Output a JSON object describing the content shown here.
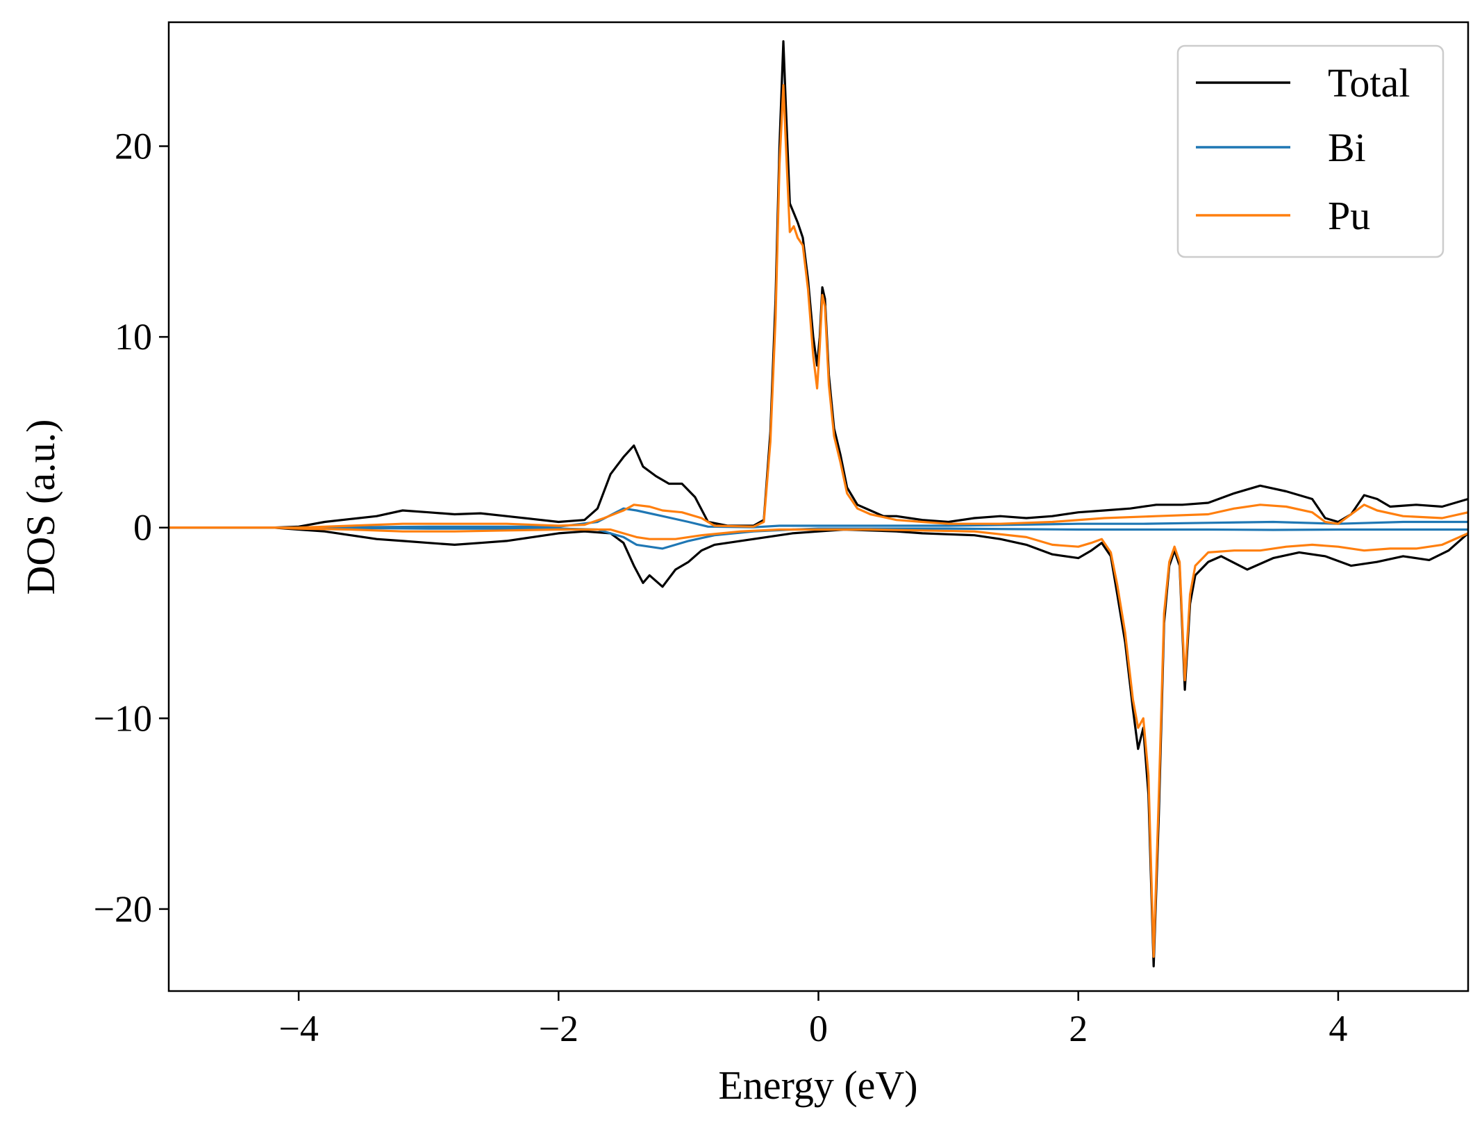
{
  "chart_data": {
    "type": "line",
    "title": "",
    "xlabel": "Energy (eV)",
    "ylabel": "DOS (a.u.)",
    "xlim": [
      -5,
      5
    ],
    "ylim": [
      -24.3,
      26.5
    ],
    "xticks": [
      -4,
      -2,
      0,
      2,
      4
    ],
    "yticks": [
      -20,
      -10,
      0,
      10,
      20
    ],
    "xtick_labels": [
      "−4",
      "−2",
      "0",
      "2",
      "4"
    ],
    "ytick_labels": [
      "−20",
      "−10",
      "0",
      "10",
      "20"
    ],
    "grid": false,
    "legend_position": "top-right",
    "series": [
      {
        "name": "Total",
        "color": "#000000",
        "up": [
          [
            -5,
            0
          ],
          [
            -4.2,
            0
          ],
          [
            -4,
            0.05
          ],
          [
            -3.8,
            0.3
          ],
          [
            -3.6,
            0.45
          ],
          [
            -3.4,
            0.6
          ],
          [
            -3.2,
            0.9
          ],
          [
            -3,
            0.8
          ],
          [
            -2.8,
            0.7
          ],
          [
            -2.6,
            0.75
          ],
          [
            -2.4,
            0.6
          ],
          [
            -2.2,
            0.45
          ],
          [
            -2,
            0.3
          ],
          [
            -1.8,
            0.4
          ],
          [
            -1.7,
            1
          ],
          [
            -1.6,
            2.8
          ],
          [
            -1.5,
            3.7
          ],
          [
            -1.42,
            4.3
          ],
          [
            -1.35,
            3.2
          ],
          [
            -1.25,
            2.7
          ],
          [
            -1.15,
            2.3
          ],
          [
            -1.05,
            2.3
          ],
          [
            -0.95,
            1.6
          ],
          [
            -0.85,
            0.3
          ],
          [
            -0.7,
            0.1
          ],
          [
            -0.5,
            0.1
          ],
          [
            -0.42,
            0.4
          ],
          [
            -0.37,
            5
          ],
          [
            -0.33,
            12
          ],
          [
            -0.3,
            20
          ],
          [
            -0.27,
            25.5
          ],
          [
            -0.25,
            22
          ],
          [
            -0.22,
            17
          ],
          [
            -0.19,
            16.5
          ],
          [
            -0.16,
            16
          ],
          [
            -0.12,
            15.2
          ],
          [
            -0.08,
            13
          ],
          [
            -0.04,
            10
          ],
          [
            -0.01,
            8.5
          ],
          [
            0.01,
            10
          ],
          [
            0.03,
            12.6
          ],
          [
            0.05,
            12
          ],
          [
            0.08,
            8
          ],
          [
            0.12,
            5.2
          ],
          [
            0.17,
            3.8
          ],
          [
            0.22,
            2.1
          ],
          [
            0.3,
            1.2
          ],
          [
            0.4,
            0.9
          ],
          [
            0.5,
            0.6
          ],
          [
            0.6,
            0.6
          ],
          [
            0.7,
            0.5
          ],
          [
            0.8,
            0.4
          ],
          [
            1,
            0.3
          ],
          [
            1.2,
            0.5
          ],
          [
            1.4,
            0.6
          ],
          [
            1.6,
            0.5
          ],
          [
            1.8,
            0.6
          ],
          [
            2,
            0.8
          ],
          [
            2.2,
            0.9
          ],
          [
            2.4,
            1
          ],
          [
            2.6,
            1.2
          ],
          [
            2.8,
            1.2
          ],
          [
            3,
            1.3
          ],
          [
            3.2,
            1.8
          ],
          [
            3.4,
            2.2
          ],
          [
            3.6,
            1.9
          ],
          [
            3.8,
            1.5
          ],
          [
            3.9,
            0.5
          ],
          [
            4,
            0.3
          ],
          [
            4.1,
            0.7
          ],
          [
            4.2,
            1.7
          ],
          [
            4.3,
            1.5
          ],
          [
            4.4,
            1.1
          ],
          [
            4.6,
            1.2
          ],
          [
            4.8,
            1.1
          ],
          [
            5,
            1.5
          ]
        ],
        "down": [
          [
            -5,
            0
          ],
          [
            -4.2,
            0
          ],
          [
            -4,
            -0.1
          ],
          [
            -3.8,
            -0.2
          ],
          [
            -3.6,
            -0.4
          ],
          [
            -3.4,
            -0.6
          ],
          [
            -3.2,
            -0.7
          ],
          [
            -3,
            -0.8
          ],
          [
            -2.8,
            -0.9
          ],
          [
            -2.6,
            -0.8
          ],
          [
            -2.4,
            -0.7
          ],
          [
            -2.2,
            -0.5
          ],
          [
            -2,
            -0.3
          ],
          [
            -1.8,
            -0.2
          ],
          [
            -1.6,
            -0.3
          ],
          [
            -1.5,
            -0.8
          ],
          [
            -1.42,
            -2
          ],
          [
            -1.35,
            -2.9
          ],
          [
            -1.3,
            -2.5
          ],
          [
            -1.2,
            -3.1
          ],
          [
            -1.1,
            -2.2
          ],
          [
            -1,
            -1.8
          ],
          [
            -0.9,
            -1.2
          ],
          [
            -0.8,
            -0.9
          ],
          [
            -0.6,
            -0.7
          ],
          [
            -0.4,
            -0.5
          ],
          [
            -0.2,
            -0.3
          ],
          [
            0,
            -0.2
          ],
          [
            0.2,
            -0.1
          ],
          [
            0.4,
            -0.15
          ],
          [
            0.6,
            -0.2
          ],
          [
            0.8,
            -0.3
          ],
          [
            1,
            -0.35
          ],
          [
            1.2,
            -0.4
          ],
          [
            1.4,
            -0.6
          ],
          [
            1.6,
            -0.9
          ],
          [
            1.8,
            -1.4
          ],
          [
            2,
            -1.6
          ],
          [
            2.1,
            -1.2
          ],
          [
            2.18,
            -0.8
          ],
          [
            2.25,
            -1.5
          ],
          [
            2.3,
            -3.5
          ],
          [
            2.36,
            -6
          ],
          [
            2.42,
            -9.5
          ],
          [
            2.46,
            -11.6
          ],
          [
            2.5,
            -10.5
          ],
          [
            2.54,
            -14
          ],
          [
            2.58,
            -23
          ],
          [
            2.62,
            -15
          ],
          [
            2.66,
            -5
          ],
          [
            2.7,
            -2
          ],
          [
            2.74,
            -1.2
          ],
          [
            2.78,
            -2
          ],
          [
            2.82,
            -8.5
          ],
          [
            2.86,
            -4
          ],
          [
            2.9,
            -2.5
          ],
          [
            3,
            -1.8
          ],
          [
            3.1,
            -1.5
          ],
          [
            3.3,
            -2.2
          ],
          [
            3.5,
            -1.6
          ],
          [
            3.7,
            -1.3
          ],
          [
            3.9,
            -1.5
          ],
          [
            4.1,
            -2
          ],
          [
            4.3,
            -1.8
          ],
          [
            4.5,
            -1.5
          ],
          [
            4.7,
            -1.7
          ],
          [
            4.85,
            -1.2
          ],
          [
            5,
            -0.3
          ]
        ]
      },
      {
        "name": "Bi",
        "color": "#1f77b4",
        "up": [
          [
            -5,
            0
          ],
          [
            -4,
            0
          ],
          [
            -3,
            0.05
          ],
          [
            -2,
            0.05
          ],
          [
            -1.7,
            0.3
          ],
          [
            -1.5,
            1
          ],
          [
            -1.4,
            0.9
          ],
          [
            -1.2,
            0.6
          ],
          [
            -1,
            0.3
          ],
          [
            -0.85,
            0.05
          ],
          [
            -0.5,
            0.02
          ],
          [
            -0.3,
            0.1
          ],
          [
            0,
            0.1
          ],
          [
            0.5,
            0.1
          ],
          [
            1,
            0.1
          ],
          [
            1.5,
            0.15
          ],
          [
            2,
            0.2
          ],
          [
            2.5,
            0.2
          ],
          [
            3,
            0.25
          ],
          [
            3.5,
            0.3
          ],
          [
            4,
            0.2
          ],
          [
            4.5,
            0.3
          ],
          [
            5,
            0.3
          ]
        ],
        "down": [
          [
            -5,
            0
          ],
          [
            -4,
            0
          ],
          [
            -3,
            -0.05
          ],
          [
            -2,
            -0.05
          ],
          [
            -1.7,
            -0.1
          ],
          [
            -1.5,
            -0.5
          ],
          [
            -1.4,
            -0.9
          ],
          [
            -1.2,
            -1.1
          ],
          [
            -1,
            -0.7
          ],
          [
            -0.8,
            -0.4
          ],
          [
            -0.5,
            -0.2
          ],
          [
            -0.2,
            -0.1
          ],
          [
            0,
            -0.05
          ],
          [
            0.5,
            -0.05
          ],
          [
            1,
            -0.05
          ],
          [
            1.5,
            -0.08
          ],
          [
            2,
            -0.1
          ],
          [
            2.5,
            -0.1
          ],
          [
            3,
            -0.1
          ],
          [
            3.5,
            -0.12
          ],
          [
            4,
            -0.1
          ],
          [
            4.5,
            -0.1
          ],
          [
            5,
            -0.1
          ]
        ]
      },
      {
        "name": "Pu",
        "color": "#ff7f0e",
        "up": [
          [
            -5,
            0
          ],
          [
            -4.2,
            0
          ],
          [
            -4,
            0
          ],
          [
            -3.6,
            0.1
          ],
          [
            -3.2,
            0.2
          ],
          [
            -2.8,
            0.2
          ],
          [
            -2.4,
            0.2
          ],
          [
            -2,
            0.1
          ],
          [
            -1.8,
            0.15
          ],
          [
            -1.65,
            0.5
          ],
          [
            -1.5,
            0.9
          ],
          [
            -1.42,
            1.2
          ],
          [
            -1.3,
            1.1
          ],
          [
            -1.2,
            0.9
          ],
          [
            -1.05,
            0.8
          ],
          [
            -0.9,
            0.5
          ],
          [
            -0.8,
            0.1
          ],
          [
            -0.5,
            0.05
          ],
          [
            -0.42,
            0.3
          ],
          [
            -0.37,
            4.5
          ],
          [
            -0.33,
            11
          ],
          [
            -0.3,
            19
          ],
          [
            -0.27,
            23.2
          ],
          [
            -0.25,
            20
          ],
          [
            -0.22,
            15.5
          ],
          [
            -0.19,
            15.8
          ],
          [
            -0.16,
            15.2
          ],
          [
            -0.12,
            14.8
          ],
          [
            -0.08,
            12.5
          ],
          [
            -0.04,
            9
          ],
          [
            -0.01,
            7.3
          ],
          [
            0.01,
            9.5
          ],
          [
            0.03,
            12.2
          ],
          [
            0.05,
            11.6
          ],
          [
            0.08,
            7.5
          ],
          [
            0.12,
            4.8
          ],
          [
            0.17,
            3.4
          ],
          [
            0.22,
            1.8
          ],
          [
            0.3,
            1
          ],
          [
            0.4,
            0.7
          ],
          [
            0.6,
            0.4
          ],
          [
            0.8,
            0.3
          ],
          [
            1,
            0.2
          ],
          [
            1.4,
            0.2
          ],
          [
            1.8,
            0.3
          ],
          [
            2.2,
            0.5
          ],
          [
            2.6,
            0.6
          ],
          [
            3,
            0.7
          ],
          [
            3.2,
            1
          ],
          [
            3.4,
            1.2
          ],
          [
            3.6,
            1.1
          ],
          [
            3.8,
            0.8
          ],
          [
            3.9,
            0.3
          ],
          [
            4,
            0.2
          ],
          [
            4.2,
            1.2
          ],
          [
            4.3,
            0.9
          ],
          [
            4.5,
            0.6
          ],
          [
            4.8,
            0.5
          ],
          [
            5,
            0.8
          ]
        ],
        "down": [
          [
            -5,
            0
          ],
          [
            -4.2,
            0
          ],
          [
            -4,
            -0.05
          ],
          [
            -3.6,
            -0.1
          ],
          [
            -3.2,
            -0.2
          ],
          [
            -2.8,
            -0.2
          ],
          [
            -2.4,
            -0.15
          ],
          [
            -2,
            -0.1
          ],
          [
            -1.8,
            -0.1
          ],
          [
            -1.6,
            -0.1
          ],
          [
            -1.4,
            -0.5
          ],
          [
            -1.3,
            -0.6
          ],
          [
            -1.1,
            -0.6
          ],
          [
            -0.9,
            -0.4
          ],
          [
            -0.6,
            -0.2
          ],
          [
            -0.3,
            -0.1
          ],
          [
            0,
            -0.1
          ],
          [
            0.4,
            -0.1
          ],
          [
            0.8,
            -0.15
          ],
          [
            1.2,
            -0.2
          ],
          [
            1.6,
            -0.5
          ],
          [
            1.8,
            -0.9
          ],
          [
            2,
            -1
          ],
          [
            2.1,
            -0.8
          ],
          [
            2.18,
            -0.6
          ],
          [
            2.25,
            -1.3
          ],
          [
            2.3,
            -3
          ],
          [
            2.36,
            -5.5
          ],
          [
            2.42,
            -9
          ],
          [
            2.46,
            -10.5
          ],
          [
            2.5,
            -10
          ],
          [
            2.54,
            -13
          ],
          [
            2.58,
            -22.5
          ],
          [
            2.62,
            -14
          ],
          [
            2.66,
            -4.5
          ],
          [
            2.7,
            -1.8
          ],
          [
            2.74,
            -1
          ],
          [
            2.78,
            -1.8
          ],
          [
            2.82,
            -8
          ],
          [
            2.86,
            -3.5
          ],
          [
            2.9,
            -2
          ],
          [
            3,
            -1.3
          ],
          [
            3.2,
            -1.2
          ],
          [
            3.4,
            -1.2
          ],
          [
            3.6,
            -1
          ],
          [
            3.8,
            -0.9
          ],
          [
            4,
            -1
          ],
          [
            4.2,
            -1.2
          ],
          [
            4.4,
            -1.1
          ],
          [
            4.6,
            -1.1
          ],
          [
            4.8,
            -0.9
          ],
          [
            5,
            -0.3
          ]
        ]
      }
    ]
  }
}
